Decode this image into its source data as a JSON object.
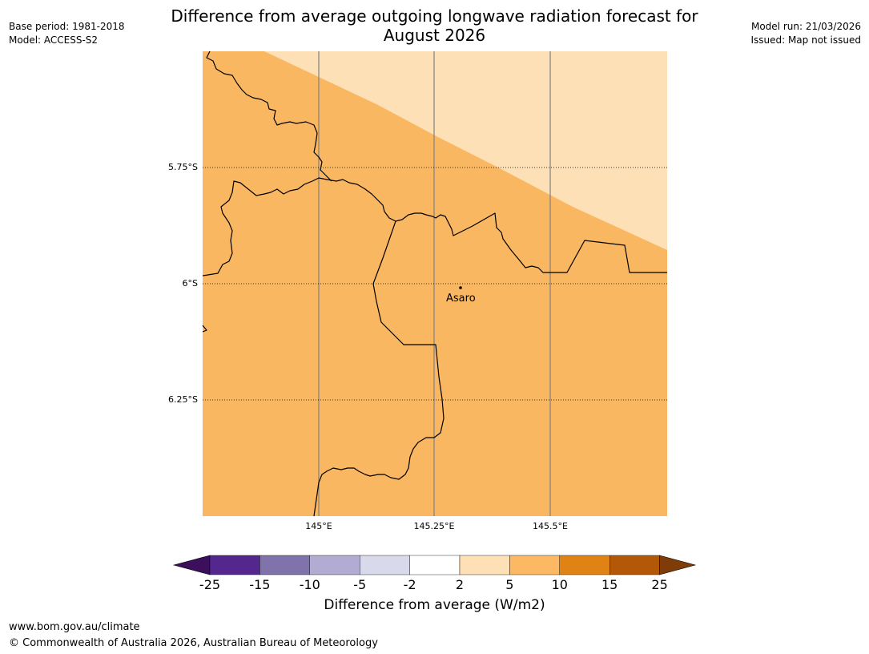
{
  "title_line1": "Difference from average outgoing longwave radiation forecast for",
  "title_line2": "August 2026",
  "meta_left": {
    "base_period": "Base period: 1981-2018",
    "model": "Model: ACCESS-S2"
  },
  "meta_right": {
    "model_run": "Model run: 21/03/2026",
    "issued": "Issued: Map not issued"
  },
  "map": {
    "lat_labels": [
      "5.75°S",
      "6°S",
      "6.25°S"
    ],
    "lon_labels": [
      "145°E",
      "145.25°E",
      "145.5°E"
    ],
    "place_name": "Asaro",
    "colors": {
      "band_2_5": "#fde0b6",
      "band_5_10": "#fab762",
      "border": "#000000",
      "grid": "#808080"
    }
  },
  "colorbar": {
    "tick_labels": [
      "-25",
      "-15",
      "-10",
      "-5",
      "-2",
      "2",
      "5",
      "10",
      "15",
      "25"
    ],
    "colors": [
      "#3b0f5c",
      "#54278f",
      "#8073ac",
      "#b2abd2",
      "#d8daeb",
      "#ffffff",
      "#fee0b6",
      "#fdb863",
      "#e08214",
      "#b35806",
      "#7f3b08"
    ],
    "label": "Difference from average (W/m2)"
  },
  "footer": {
    "url": "www.bom.gov.au/climate",
    "copyright": "© Commonwealth of Australia 2026, Australian Bureau of Meteorology"
  }
}
